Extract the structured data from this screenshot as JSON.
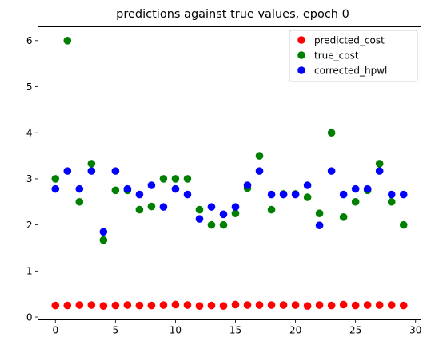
{
  "chart_data": {
    "type": "scatter",
    "title": "predictions against true values, epoch 0",
    "xlabel": "",
    "ylabel": "",
    "xlim": [
      -1.45,
      30.45
    ],
    "ylim": [
      -0.06,
      6.3
    ],
    "xticks": [
      0,
      5,
      10,
      15,
      20,
      25,
      30
    ],
    "yticks": [
      0,
      1,
      2,
      3,
      4,
      5,
      6
    ],
    "grid": false,
    "legend_position": "top-right",
    "x": [
      0,
      1,
      2,
      3,
      4,
      5,
      6,
      7,
      8,
      9,
      10,
      11,
      12,
      13,
      14,
      15,
      16,
      17,
      18,
      19,
      20,
      21,
      22,
      23,
      24,
      25,
      26,
      27,
      28,
      29
    ],
    "series": [
      {
        "name": "predicted_cost",
        "color": "#ff0000",
        "values": [
          0.25,
          0.25,
          0.26,
          0.26,
          0.24,
          0.25,
          0.26,
          0.25,
          0.25,
          0.26,
          0.27,
          0.26,
          0.24,
          0.25,
          0.24,
          0.27,
          0.26,
          0.26,
          0.26,
          0.26,
          0.26,
          0.24,
          0.26,
          0.25,
          0.27,
          0.25,
          0.26,
          0.26,
          0.26,
          0.25
        ]
      },
      {
        "name": "true_cost",
        "color": "#008000",
        "values": [
          3.0,
          6.0,
          2.5,
          3.33,
          1.67,
          2.75,
          2.75,
          2.33,
          2.4,
          3.0,
          3.0,
          3.0,
          2.33,
          2.0,
          2.0,
          2.25,
          2.8,
          3.5,
          2.33,
          2.67,
          2.67,
          2.6,
          2.25,
          4.0,
          2.17,
          2.5,
          2.75,
          3.33,
          2.5,
          2.0
        ]
      },
      {
        "name": "corrected_hpwl",
        "color": "#0000ff",
        "values": [
          2.78,
          3.17,
          2.78,
          3.17,
          1.85,
          3.17,
          2.78,
          2.66,
          2.86,
          2.39,
          2.78,
          2.66,
          2.13,
          2.39,
          2.23,
          2.39,
          2.86,
          3.17,
          2.66,
          2.66,
          2.66,
          2.86,
          1.99,
          3.17,
          2.66,
          2.78,
          2.78,
          3.17,
          2.66,
          2.66
        ]
      }
    ]
  }
}
